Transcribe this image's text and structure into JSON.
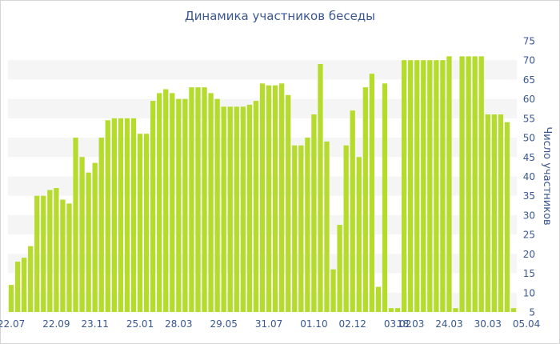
{
  "chart_data": {
    "type": "bar",
    "title": "Динамика участников беседы",
    "xlabel": "",
    "ylabel": "Число участников",
    "ylim": [
      5,
      75
    ],
    "yticks": [
      5,
      10,
      15,
      20,
      25,
      30,
      35,
      40,
      45,
      50,
      55,
      60,
      65,
      70,
      75
    ],
    "y_axis_side": "right",
    "grid": "alternating-horizontal-bands",
    "bar_color": "#b5dc2d",
    "x_tick_labels": [
      "22.07",
      "22.09",
      "23.11",
      "25.01",
      "28.03",
      "29.05",
      "31.07",
      "01.10",
      "02.12",
      "03.02",
      "18.03",
      "24.03",
      "30.03",
      "05.04"
    ],
    "series": [
      {
        "values": [
          12,
          18,
          19,
          22,
          35,
          35,
          36.5,
          37,
          34,
          33,
          50,
          45,
          41,
          43.5,
          50,
          54.5,
          55,
          55,
          55,
          55,
          51,
          51,
          59.5,
          61.5,
          62.5,
          61.5,
          60,
          60,
          63,
          63,
          63,
          61.5,
          60,
          58,
          58,
          58,
          58,
          58.5,
          59.5,
          64,
          63.5,
          63.5,
          64,
          61,
          48,
          48,
          50,
          56,
          69,
          49,
          16,
          27.5,
          48,
          57,
          45,
          63,
          66.5,
          11.5,
          64,
          6,
          6,
          70,
          70,
          70,
          70,
          70,
          70,
          70,
          71,
          6,
          71,
          71,
          71,
          71,
          56,
          56,
          56,
          54,
          6
        ]
      }
    ]
  }
}
